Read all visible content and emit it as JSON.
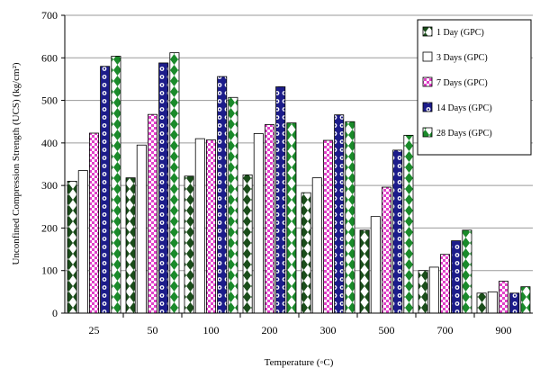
{
  "chart_data": {
    "type": "bar",
    "xlabel": "Temperature (◦C)",
    "ylabel": "Unconfined Compression Strength (UCS) (kg/cm²)",
    "ylim": [
      0,
      700
    ],
    "yticks": [
      0,
      100,
      200,
      300,
      400,
      500,
      600,
      700
    ],
    "grid": true,
    "legend_position": "top-right",
    "categories": [
      "25",
      "50",
      "100",
      "200",
      "300",
      "500",
      "700",
      "900"
    ],
    "series": [
      {
        "name": "1 Day (GPC)",
        "values": [
          310,
          318,
          322,
          325,
          283,
          195,
          100,
          47
        ],
        "color": "#1a4d1a",
        "pattern": "diamond-dark"
      },
      {
        "name": "3 Days (GPC)",
        "values": [
          335,
          395,
          410,
          422,
          318,
          227,
          108,
          50
        ],
        "color": "#ffffff",
        "pattern": "white"
      },
      {
        "name": "7  Days (GPC)",
        "values": [
          423,
          467,
          407,
          443,
          406,
          296,
          138,
          75
        ],
        "color": "#e040c8",
        "pattern": "checker-pink"
      },
      {
        "name": "14  Days (GPC)",
        "values": [
          580,
          588,
          556,
          532,
          466,
          383,
          170,
          47
        ],
        "color": "#1c1c8a",
        "pattern": "circle-navy"
      },
      {
        "name": "28  Days (GPC)",
        "values": [
          604,
          612,
          507,
          447,
          450,
          418,
          195,
          62
        ],
        "color": "#1a8a2a",
        "pattern": "diamond-green"
      }
    ]
  }
}
